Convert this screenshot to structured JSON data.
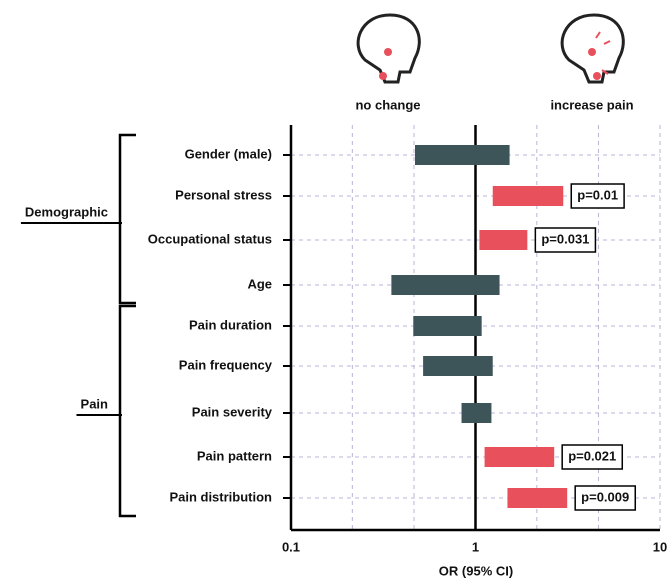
{
  "chart_data": {
    "type": "range_bar",
    "annotations": [
      "no change",
      "increase pain"
    ],
    "categories": [
      "Gender (male)",
      "Personal stress",
      "Occupational status",
      "Age",
      "Pain duration",
      "Pain frequency",
      "Pain severity",
      "Pain pattern",
      "Pain distribution"
    ],
    "lower": [
      0.47,
      1.24,
      1.05,
      0.35,
      0.46,
      0.52,
      0.84,
      1.12,
      1.49
    ],
    "upper": [
      1.53,
      2.99,
      1.91,
      1.35,
      1.08,
      1.24,
      1.22,
      2.67,
      3.14
    ],
    "value_labels": [
      null,
      "p=0.01",
      "p=0.031",
      null,
      null,
      null,
      null,
      "p=0.021",
      "p=0.009"
    ],
    "colors": [
      "#3d5559",
      "#e8505b",
      "#e8505b",
      "#3d5559",
      "#3d5559",
      "#3d5559",
      "#3d5559",
      "#e8505b",
      "#e8505b"
    ],
    "groups": [
      {
        "name": "Demographic",
        "start": 0,
        "end": 3
      },
      {
        "name": "Pain",
        "start": 4,
        "end": 8
      }
    ],
    "x_label": "OR (95% CI)",
    "xlim": [
      0.1,
      10
    ],
    "xticks": [
      0.1,
      1,
      10
    ],
    "xgrid": [
      0.215,
      0.464,
      2.15,
      4.64
    ],
    "log_x": true,
    "reference": 1,
    "grid": true
  }
}
